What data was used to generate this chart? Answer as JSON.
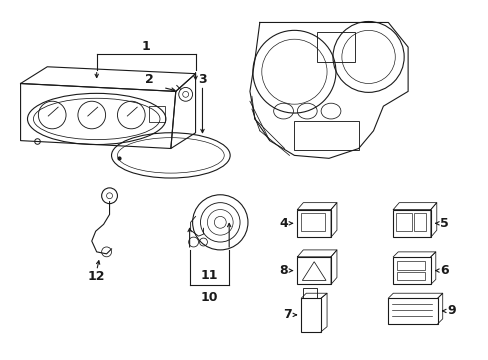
{
  "bg_color": "#ffffff",
  "line_color": "#1a1a1a",
  "lw": 0.8,
  "figsize": [
    4.89,
    3.6
  ],
  "dpi": 100
}
